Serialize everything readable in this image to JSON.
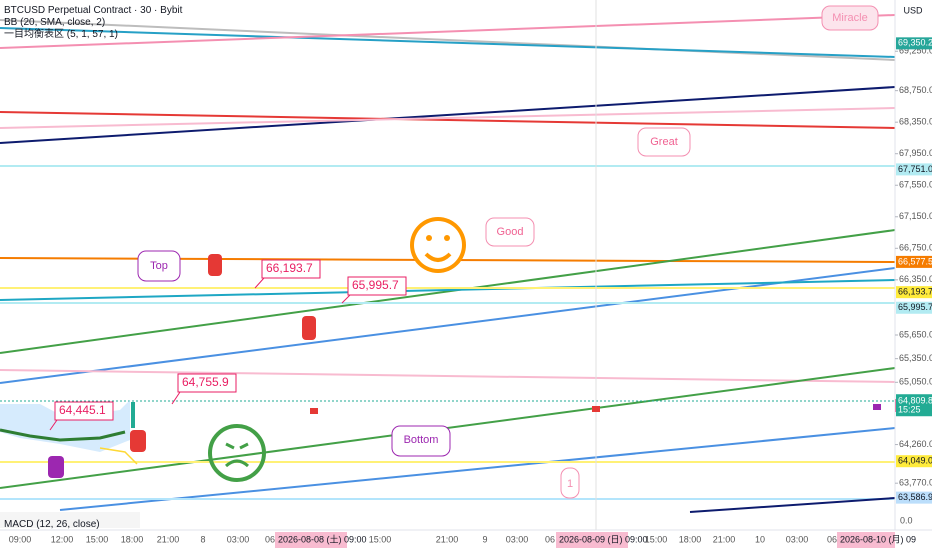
{
  "header": {
    "symbol": "BTCUSD Perpetual Contract · 30 · Bybit",
    "indicators": [
      "BB (20, SMA, close, 2)",
      "一目均衡表区 (5, 1, 57, 1)"
    ],
    "macd": "MACD (12, 26, close)",
    "currency": "USD"
  },
  "price_axis": {
    "range": [
      63430,
      69900
    ],
    "ticks": [
      {
        "value": 69250,
        "label": "69,250.0"
      },
      {
        "value": 68750,
        "label": "68,750.0"
      },
      {
        "value": 68350,
        "label": "68,350.0"
      },
      {
        "value": 67950,
        "label": "67,950.0"
      },
      {
        "value": 67550,
        "label": "67,550.0"
      },
      {
        "value": 67150,
        "label": "67,150.0"
      },
      {
        "value": 66750,
        "label": "66,750.0"
      },
      {
        "value": 66350,
        "label": "66,350.0"
      },
      {
        "value": 65650,
        "label": "65,650.0"
      },
      {
        "value": 65350,
        "label": "65,350.0"
      },
      {
        "value": 65050,
        "label": "65,050.0"
      },
      {
        "value": 64260,
        "label": "64,260.0"
      },
      {
        "value": 63770,
        "label": "63,770.0"
      }
    ],
    "macd_zero": "0.0",
    "markers": [
      {
        "value": 69350.2,
        "label": "69,350.2",
        "color": "#26a69a"
      },
      {
        "value": 67751.0,
        "label": "67,751.0",
        "color": "#b2ebf2"
      },
      {
        "value": 66577.5,
        "label": "66,577.5",
        "color": "#f57c00"
      },
      {
        "value": 66193.7,
        "label": "66,193.7",
        "color": "#ffeb3b"
      },
      {
        "value": 65995.7,
        "label": "65,995.7",
        "color": "#b2ebf2"
      },
      {
        "value": 64755.9,
        "label": "64,755.9",
        "color": "#ffffff"
      },
      {
        "value": 64049.0,
        "label": "64,049.0",
        "color": "#ffeb3b"
      },
      {
        "value": 63586.9,
        "label": "63,586.9",
        "color": "#bbdefb"
      }
    ],
    "last_price": {
      "value": 64809.8,
      "label": "64,809.8",
      "countdown": "15:25",
      "color": "#22ab94"
    }
  },
  "time_axis": {
    "labels": [
      "09:00",
      "12:00",
      "15:00",
      "18:00",
      "21:00",
      "8",
      "03:00",
      "06",
      "15:00",
      "21:00",
      "9",
      "03:00",
      "06",
      "15:00",
      "18:00",
      "21:00",
      "10",
      "03:00",
      "06"
    ],
    "highlights": [
      "2026-08-08 (土)  09:00",
      "2026-08-09 (日)  09:00",
      "2026-08-10 (月)  09"
    ]
  },
  "callouts": [
    "66,193.7",
    "65,995.7",
    "64,755.9",
    "64,445.1"
  ],
  "notes": {
    "miracle": "Miracle",
    "great": "Great",
    "good": "Good",
    "top": "Top",
    "bottom": "Bottom",
    "one": "1"
  }
}
